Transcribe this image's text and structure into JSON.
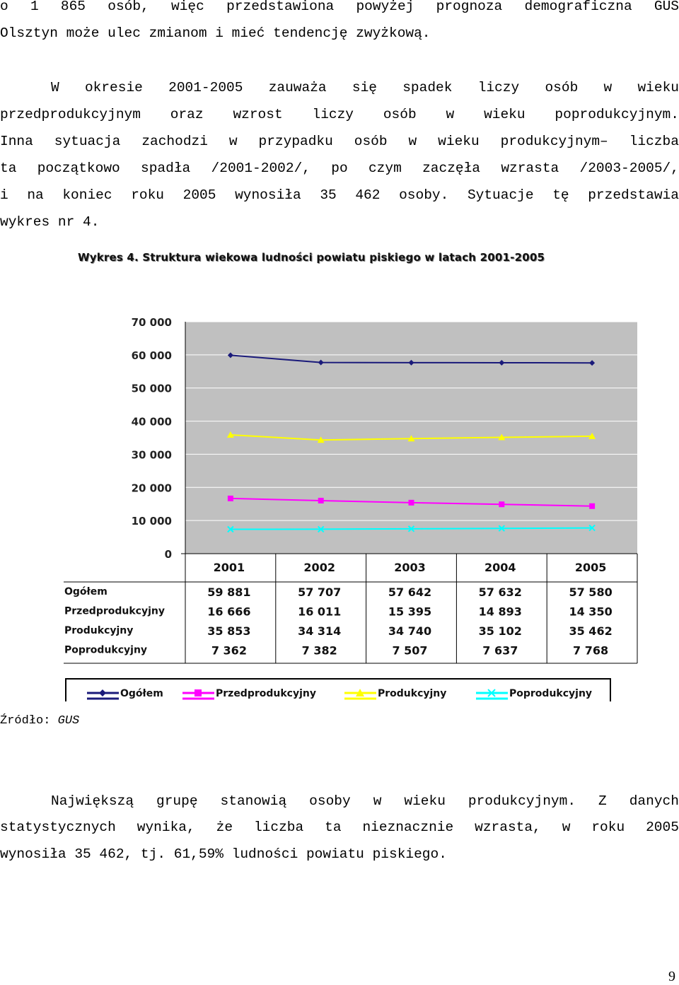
{
  "para1": {
    "line1": "o 1 865 osób, więc przedstawiona powyżej prognoza demograficzna GUS",
    "line2": "Olsztyn może ulec zmianom i mieć tendencję zwyżkową."
  },
  "para2": {
    "line1": "W okresie 2001-2005 zauważa się spadek liczy osób w wieku",
    "line2": "przedprodukcyjnym oraz wzrost liczy osób w wieku poprodukcyjnym.",
    "line3": "Inna sytuacja zachodzi w przypadku osób w wieku produkcyjnym– liczba",
    "line4": "ta początkowo spadła /2001-2002/, po czym zaczęła wzrasta /2003-2005/,",
    "line5": "i na koniec roku 2005 wynosiła 35 462 osoby. Sytuacje tę przedstawia",
    "line6": "wykres nr 4."
  },
  "chart_data": {
    "type": "line",
    "title": "Wykres 4. Struktura wiekowa ludności powiatu piskiego w latach 2001-2005",
    "categories": [
      "2001",
      "2002",
      "2003",
      "2004",
      "2005"
    ],
    "ylim": [
      0,
      70000
    ],
    "y_ticks": [
      "0",
      "10 000",
      "20 000",
      "30 000",
      "40 000",
      "50 000",
      "60 000",
      "70 000"
    ],
    "grid": true,
    "legend_position": "bottom",
    "series": [
      {
        "name": "Ogółem",
        "values": [
          59881,
          57707,
          57642,
          57632,
          57580
        ],
        "labels": [
          "59 881",
          "57 707",
          "57 642",
          "57 632",
          "57 580"
        ],
        "color": "#1a1a7a",
        "marker": "diamond"
      },
      {
        "name": "Przedprodukcyjny",
        "values": [
          16666,
          16011,
          15395,
          14893,
          14350
        ],
        "labels": [
          "16 666",
          "16 011",
          "15 395",
          "14 893",
          "14 350"
        ],
        "color": "#ff00ff",
        "marker": "square"
      },
      {
        "name": "Produkcyjny",
        "values": [
          35853,
          34314,
          34740,
          35102,
          35462
        ],
        "labels": [
          "35 853",
          "34 314",
          "34 740",
          "35 102",
          "35 462"
        ],
        "color": "#ffff00",
        "marker": "triangle"
      },
      {
        "name": "Poprodukcyjny",
        "values": [
          7362,
          7382,
          7507,
          7637,
          7768
        ],
        "labels": [
          "7 362",
          "7 382",
          "7 507",
          "7 637",
          "7 768"
        ],
        "color": "#00ffff",
        "marker": "x"
      }
    ]
  },
  "source": {
    "label": "Źródło:",
    "value": "GUS"
  },
  "para3": {
    "line1": "Największą grupę stanowią osoby w wieku produkcyjnym. Z danych",
    "line2": "statystycznych wynika, że liczba ta nieznacznie wzrasta, w roku 2005",
    "line3": "wynosiła 35 462, tj. 61,59% ludności powiatu piskiego."
  },
  "page_number": "9"
}
